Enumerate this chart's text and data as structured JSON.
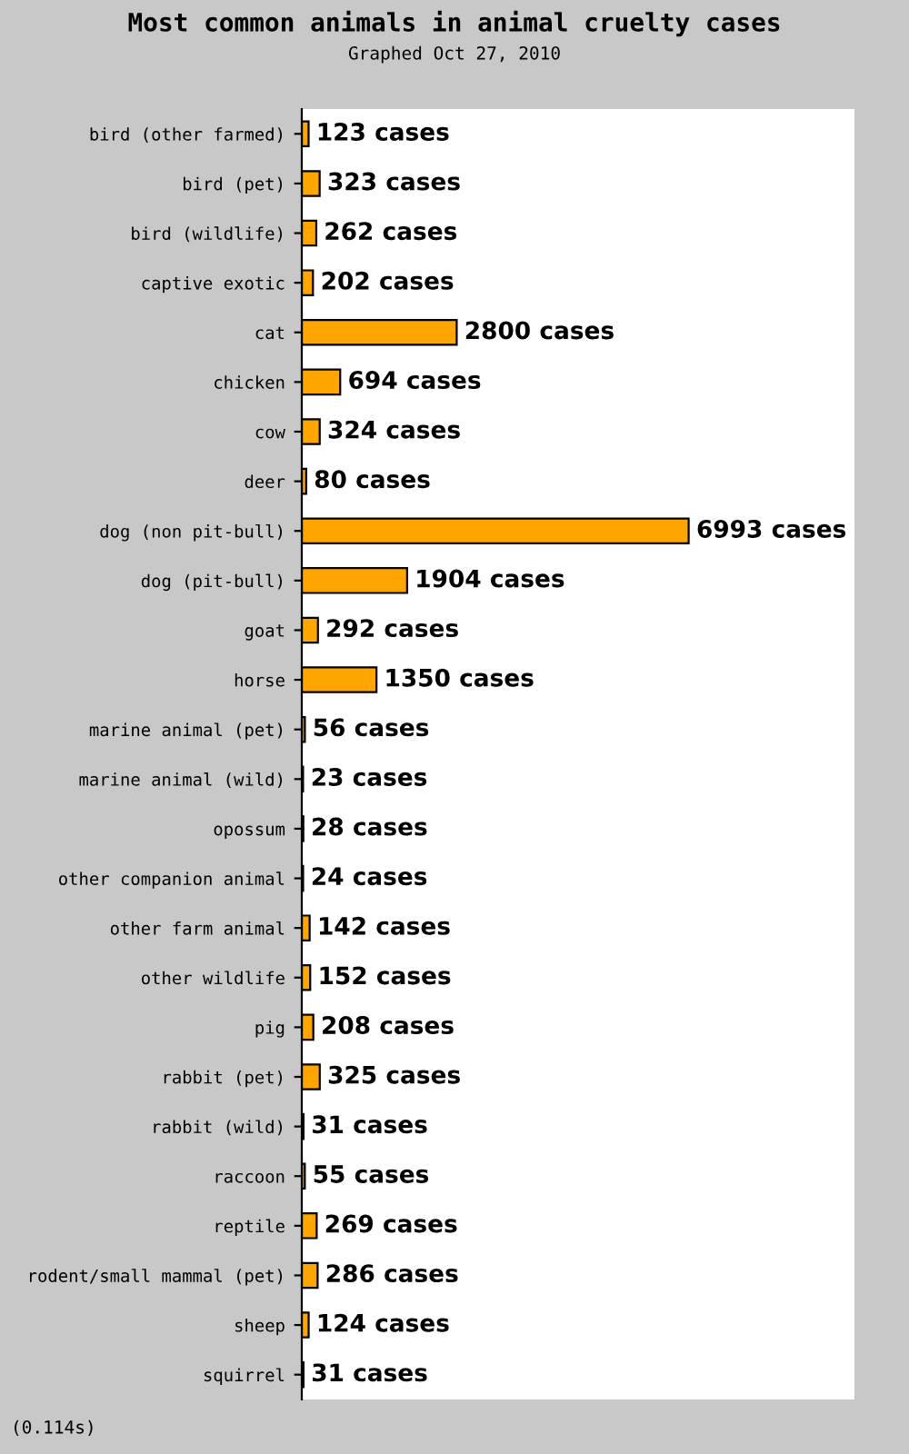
{
  "chart_data": {
    "type": "bar",
    "orientation": "horizontal",
    "title": "Most common animals in animal cruelty cases",
    "subtitle": "Graphed Oct 27, 2010",
    "categories": [
      "bird (other farmed)",
      "bird (pet)",
      "bird (wildlife)",
      "captive exotic",
      "cat",
      "chicken",
      "cow",
      "deer",
      "dog (non pit-bull)",
      "dog (pit-bull)",
      "goat",
      "horse",
      "marine animal (pet)",
      "marine animal (wild)",
      "opossum",
      "other companion animal",
      "other farm animal",
      "other wildlife",
      "pig",
      "rabbit (pet)",
      "rabbit (wild)",
      "raccoon",
      "reptile",
      "rodent/small mammal (pet)",
      "sheep",
      "squirrel"
    ],
    "values": [
      123,
      323,
      262,
      202,
      2800,
      694,
      324,
      80,
      6993,
      1904,
      292,
      1350,
      56,
      23,
      28,
      24,
      142,
      152,
      208,
      325,
      31,
      55,
      269,
      286,
      124,
      31
    ],
    "value_labels": [
      "123 cases",
      "323 cases",
      "262 cases",
      "202 cases",
      "2800 cases",
      "694 cases",
      "324 cases",
      "80 cases",
      "6993 cases",
      "1904 cases",
      "292 cases",
      "1350 cases",
      "56 cases",
      "23 cases",
      "28 cases",
      "24 cases",
      "142 cases",
      "152 cases",
      "208 cases",
      "325 cases",
      "31 cases",
      "55 cases",
      "269 cases",
      "286 cases",
      "124 cases",
      "31 cases"
    ],
    "color": "#ffa500",
    "grid": false,
    "legend": false,
    "annotations": [
      "(0.114s)"
    ]
  }
}
